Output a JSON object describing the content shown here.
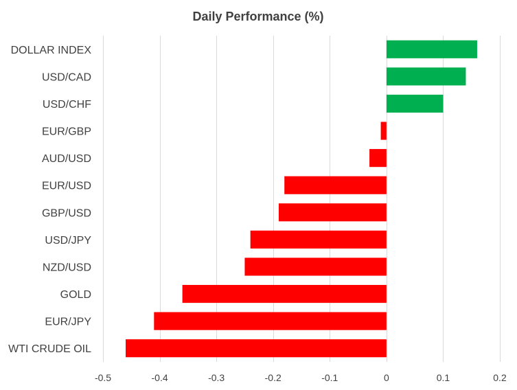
{
  "chart_data": {
    "type": "bar",
    "orientation": "horizontal",
    "title": "Daily Performance (%)",
    "xlabel": "",
    "ylabel": "",
    "xlim": [
      -0.5,
      0.2
    ],
    "x_ticks": [
      -0.5,
      -0.4,
      -0.3,
      -0.2,
      -0.1,
      0,
      0.1,
      0.2
    ],
    "x_tick_labels": [
      "-0.5",
      "-0.4",
      "-0.3",
      "-0.2",
      "-0.1",
      "0",
      "0.1",
      "0.2"
    ],
    "grid": "vertical",
    "legend": "none",
    "categories": [
      "DOLLAR INDEX",
      "USD/CAD",
      "USD/CHF",
      "EUR/GBP",
      "AUD/USD",
      "EUR/USD",
      "GBP/USD",
      "USD/JPY",
      "NZD/USD",
      "GOLD",
      "EUR/JPY",
      "WTI CRUDE OIL"
    ],
    "values": [
      0.16,
      0.14,
      0.1,
      -0.01,
      -0.03,
      -0.18,
      -0.19,
      -0.24,
      -0.25,
      -0.36,
      -0.41,
      -0.46
    ],
    "colors": {
      "positive": "#00B050",
      "negative": "#FF0000",
      "grid": "#D9D9D9",
      "text": "#404040"
    }
  }
}
